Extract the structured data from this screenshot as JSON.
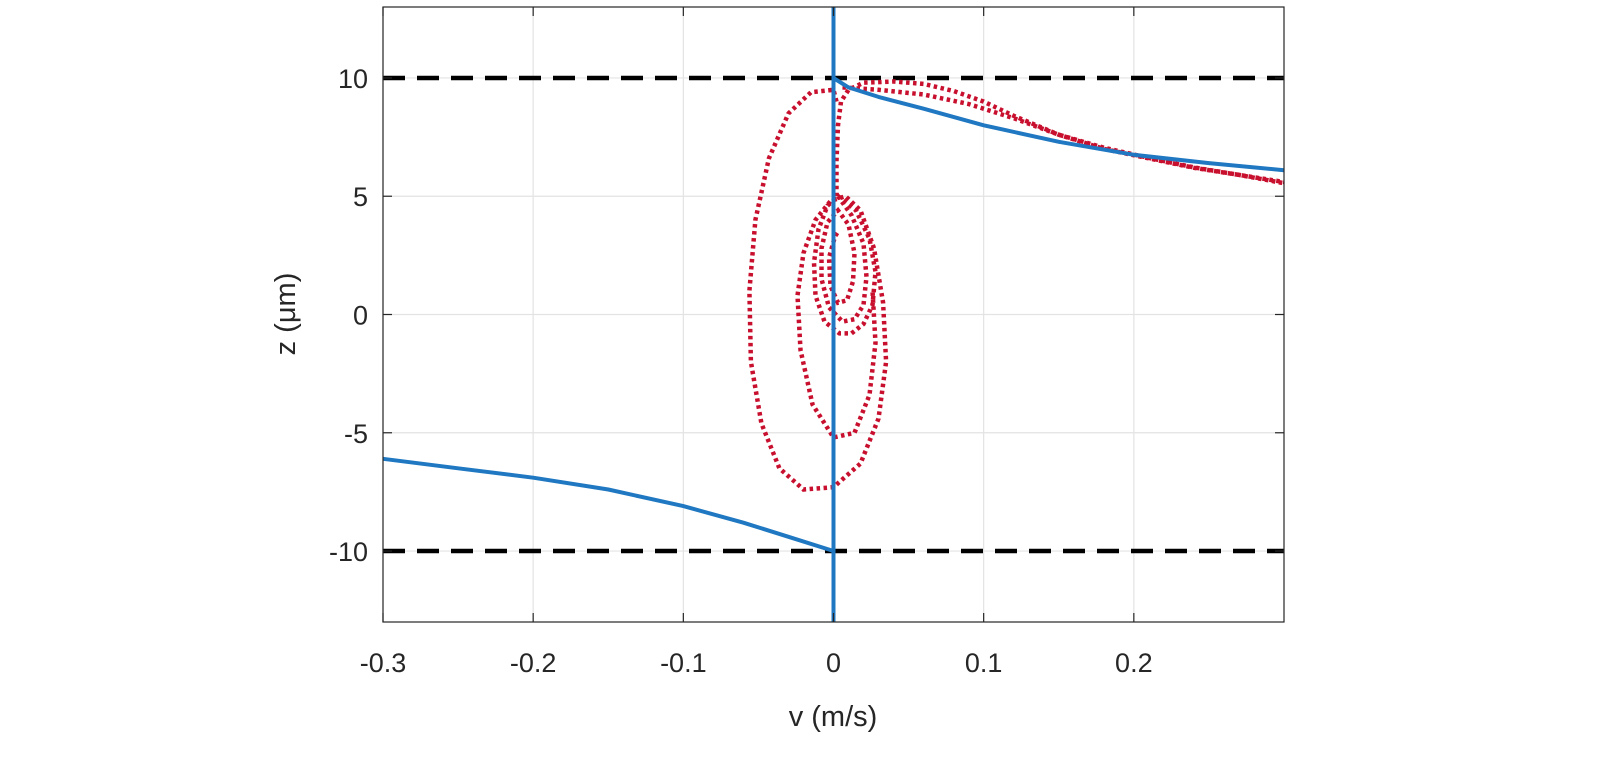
{
  "chart_data": {
    "type": "line",
    "title": "",
    "xlabel": "v (m/s)",
    "ylabel": "z (μm)",
    "xlim": [
      -0.3,
      0.3
    ],
    "ylim": [
      -13,
      13
    ],
    "grid": true,
    "x_ticks": [
      -0.3,
      -0.2,
      -0.1,
      0,
      0.1,
      0.2
    ],
    "x_tick_labels": [
      "-0.3",
      "-0.2",
      "-0.1",
      "0",
      "0.1",
      "0.2"
    ],
    "y_ticks": [
      -10,
      -5,
      0,
      5,
      10
    ],
    "y_tick_labels": [
      "-10",
      "-5",
      "0",
      "5",
      "10"
    ],
    "reference_lines": [
      {
        "y": 10,
        "style": "dashed",
        "color": "#000000"
      },
      {
        "y": -10,
        "style": "dashed",
        "color": "#000000"
      }
    ],
    "series": [
      {
        "style": "dotted",
        "color": "#c8102e",
        "segments": [
          [
            [
              0.003,
              5.0
            ],
            [
              0.015,
              4.4
            ],
            [
              0.024,
              3.2
            ],
            [
              0.028,
              1.8
            ],
            [
              0.026,
              0.4
            ],
            [
              0.02,
              -0.4
            ],
            [
              0.012,
              -0.8
            ],
            [
              0.004,
              -0.8
            ],
            [
              -0.006,
              -0.3
            ],
            [
              -0.012,
              0.8
            ],
            [
              -0.013,
              2.2
            ],
            [
              -0.01,
              3.6
            ],
            [
              -0.004,
              4.6
            ],
            [
              0.003,
              5.0
            ],
            [
              0.012,
              4.2
            ],
            [
              0.02,
              3.0
            ],
            [
              0.022,
              1.6
            ],
            [
              0.02,
              0.4
            ],
            [
              0.014,
              -0.2
            ],
            [
              0.006,
              -0.3
            ],
            [
              -0.003,
              0.3
            ],
            [
              -0.008,
              1.5
            ],
            [
              -0.008,
              2.8
            ],
            [
              -0.004,
              3.9
            ],
            [
              0.003,
              4.4
            ],
            [
              0.01,
              3.8
            ],
            [
              0.014,
              2.6
            ],
            [
              0.013,
              1.4
            ],
            [
              0.009,
              0.6
            ],
            [
              0.003,
              0.5
            ],
            [
              -0.002,
              1.2
            ],
            [
              -0.003,
              2.4
            ],
            [
              0.001,
              3.3
            ],
            [
              0.003,
              3.5
            ]
          ],
          [
            [
              0.002,
              9.0
            ],
            [
              0.0,
              9.5
            ],
            [
              -0.015,
              9.4
            ],
            [
              -0.03,
              8.5
            ],
            [
              -0.043,
              6.6
            ],
            [
              -0.052,
              4.0
            ],
            [
              -0.056,
              1.0
            ],
            [
              -0.055,
              -2.0
            ],
            [
              -0.048,
              -4.6
            ],
            [
              -0.036,
              -6.5
            ],
            [
              -0.02,
              -7.4
            ],
            [
              0.0,
              -7.3
            ],
            [
              0.018,
              -6.3
            ],
            [
              0.03,
              -4.4
            ],
            [
              0.035,
              -2.0
            ],
            [
              0.033,
              0.5
            ],
            [
              0.027,
              2.8
            ],
            [
              0.018,
              4.4
            ],
            [
              0.008,
              5.0
            ],
            [
              -0.002,
              4.8
            ],
            [
              -0.012,
              4.0
            ],
            [
              -0.02,
              2.6
            ],
            [
              -0.024,
              0.8
            ],
            [
              -0.022,
              -1.5
            ],
            [
              -0.014,
              -3.8
            ],
            [
              0.0,
              -5.2
            ],
            [
              0.014,
              -5.0
            ],
            [
              0.024,
              -3.4
            ],
            [
              0.028,
              -1.2
            ],
            [
              0.026,
              1.0
            ]
          ],
          [
            [
              0.002,
              5.0
            ],
            [
              0.002,
              6.5
            ],
            [
              0.003,
              8.0
            ],
            [
              0.005,
              9.0
            ],
            [
              0.01,
              9.5
            ],
            [
              0.02,
              9.8
            ],
            [
              0.04,
              9.85
            ],
            [
              0.06,
              9.75
            ],
            [
              0.08,
              9.45
            ],
            [
              0.1,
              9.0
            ],
            [
              0.12,
              8.4
            ],
            [
              0.15,
              7.6
            ],
            [
              0.18,
              7.0
            ],
            [
              0.21,
              6.6
            ],
            [
              0.24,
              6.2
            ],
            [
              0.27,
              5.9
            ],
            [
              0.3,
              5.6
            ]
          ],
          [
            [
              0.006,
              9.6
            ],
            [
              0.03,
              9.5
            ],
            [
              0.06,
              9.3
            ],
            [
              0.09,
              8.9
            ],
            [
              0.12,
              8.3
            ],
            [
              0.15,
              7.6
            ],
            [
              0.18,
              7.05
            ],
            [
              0.21,
              6.62
            ],
            [
              0.24,
              6.22
            ],
            [
              0.27,
              5.9
            ],
            [
              0.3,
              5.55
            ]
          ]
        ]
      },
      {
        "style": "solid",
        "color": "#1f78c1",
        "segments": [
          [
            [
              0,
              -13
            ],
            [
              0,
              13
            ]
          ],
          [
            [
              0,
              10
            ],
            [
              0.01,
              9.6
            ],
            [
              0.03,
              9.2
            ],
            [
              0.06,
              8.7
            ],
            [
              0.1,
              8.0
            ],
            [
              0.15,
              7.3
            ],
            [
              0.2,
              6.75
            ],
            [
              0.25,
              6.4
            ],
            [
              0.3,
              6.1
            ]
          ],
          [
            [
              0,
              -10
            ],
            [
              -0.03,
              -9.4
            ],
            [
              -0.06,
              -8.8
            ],
            [
              -0.1,
              -8.1
            ],
            [
              -0.15,
              -7.4
            ],
            [
              -0.2,
              -6.9
            ],
            [
              -0.25,
              -6.5
            ],
            [
              -0.3,
              -6.1
            ]
          ]
        ]
      }
    ]
  }
}
